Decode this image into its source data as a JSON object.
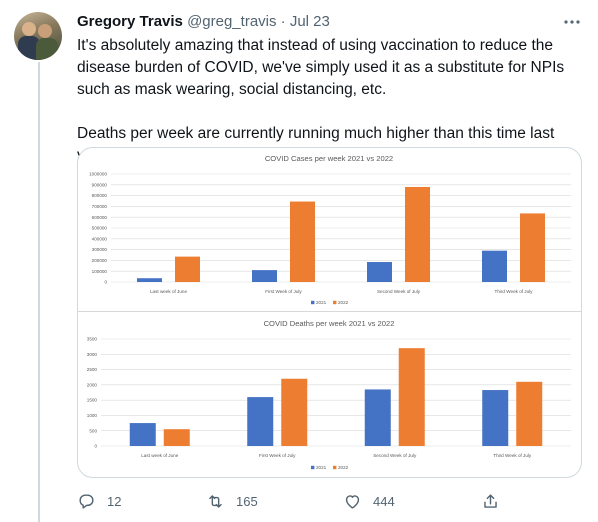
{
  "tweet": {
    "author": "Gregory Travis",
    "handle": "@greg_travis",
    "separator": "·",
    "date": "Jul 23",
    "paragraphs": [
      "It's absolutely amazing that instead of using vaccination to reduce the disease burden of COVID, we've simply used it as a substitute for NPIs such as mask wearing, social distancing, etc.",
      "Deaths per week are currently running much higher than this time last year"
    ],
    "icons": {
      "more": "more-horizontal-icon",
      "reply": "reply-icon",
      "retweet": "retweet-icon",
      "like": "heart-icon",
      "share": "share-icon"
    },
    "stats": {
      "replies": "12",
      "retweets": "165",
      "likes": "444"
    }
  },
  "colors": {
    "series_2021": "#4472c4",
    "series_2022": "#ed7d31",
    "text": "#0f1419",
    "muted": "#536471"
  },
  "chart_data": [
    {
      "type": "bar",
      "title": "COVID Cases per week 2021 vs 2022",
      "categories": [
        "Last week of June",
        "First Week of July",
        "Second Week of July",
        "Third Week of July"
      ],
      "series": [
        {
          "name": "2021",
          "values": [
            35000,
            110000,
            185000,
            290000
          ]
        },
        {
          "name": "2022",
          "values": [
            235000,
            745000,
            880000,
            635000
          ]
        }
      ],
      "yticks": [
        "0",
        "100000",
        "200000",
        "300000",
        "400000",
        "500000",
        "600000",
        "700000",
        "800000",
        "900000",
        "1000000"
      ],
      "ylim": [
        0,
        1000000
      ],
      "grid": true,
      "legend": "bottom"
    },
    {
      "type": "bar",
      "title": "COVID Deaths per week 2021 vs 2022",
      "categories": [
        "Last week of June",
        "First Week of July",
        "Second Week of July",
        "Third Week of July"
      ],
      "series": [
        {
          "name": "2021",
          "values": [
            750,
            1600,
            1850,
            1830
          ]
        },
        {
          "name": "2022",
          "values": [
            550,
            2200,
            3200,
            2100
          ]
        }
      ],
      "yticks": [
        "0",
        "500",
        "1000",
        "1500",
        "2000",
        "2500",
        "3000",
        "3500"
      ],
      "ylim": [
        0,
        3500
      ],
      "grid": true,
      "legend": "bottom"
    }
  ]
}
